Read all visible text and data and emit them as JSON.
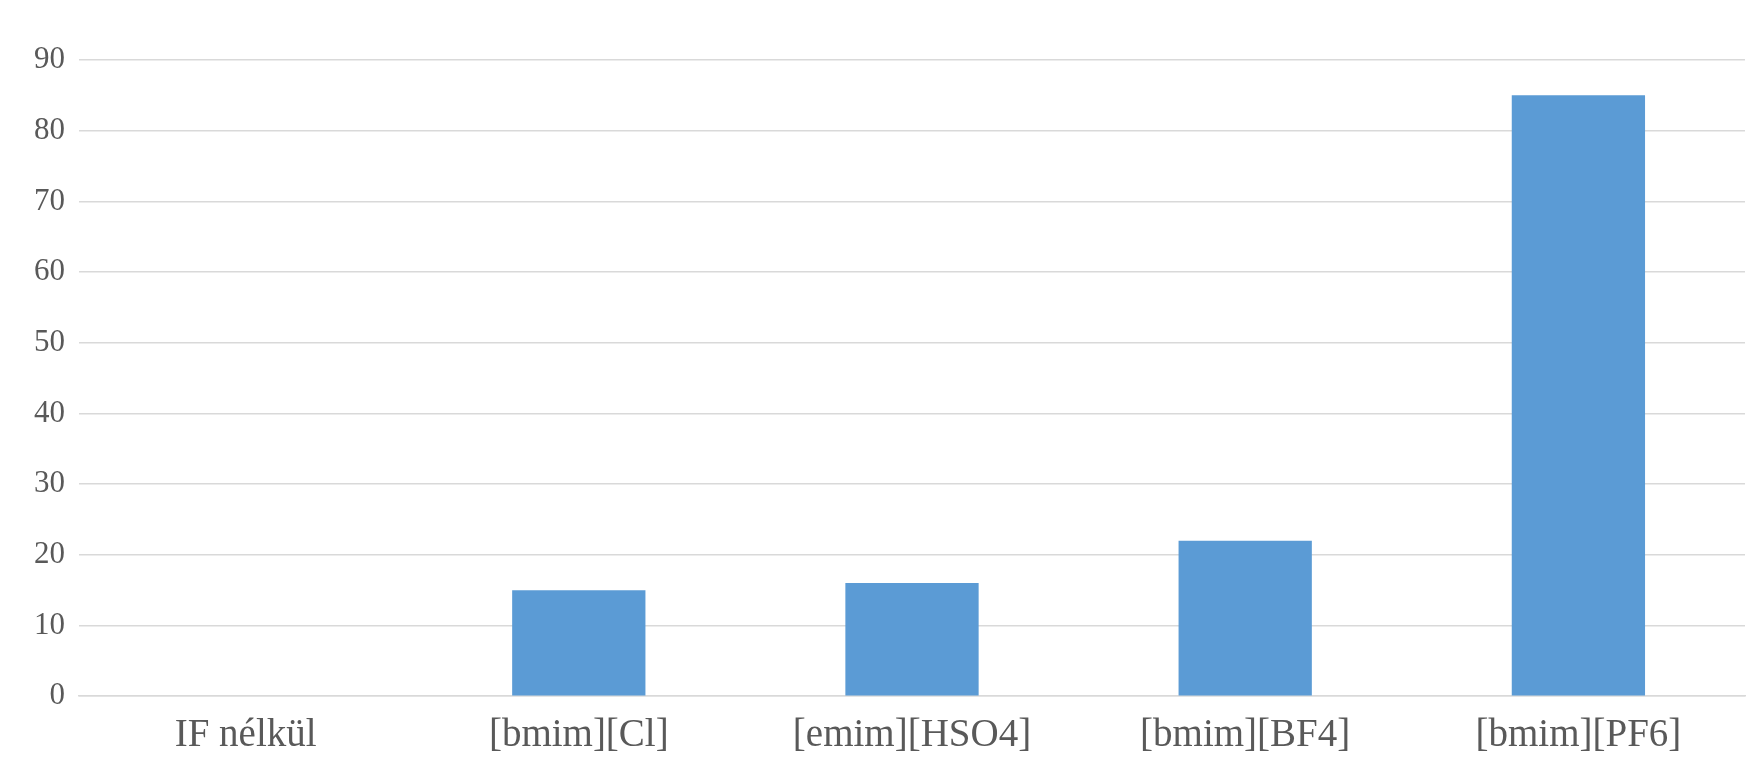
{
  "chart_data": {
    "type": "bar",
    "categories": [
      "IF nélkül",
      "[bmim][Cl]",
      "[emim][HSO4]",
      "[bmim][BF4]",
      "[bmim][PF6]"
    ],
    "values": [
      0,
      15,
      16,
      22,
      85
    ],
    "color": "#5b9bd5",
    "ylim": [
      0,
      90
    ],
    "yticks": [
      0,
      10,
      20,
      30,
      40,
      50,
      60,
      70,
      80,
      90
    ],
    "grid": "y"
  }
}
